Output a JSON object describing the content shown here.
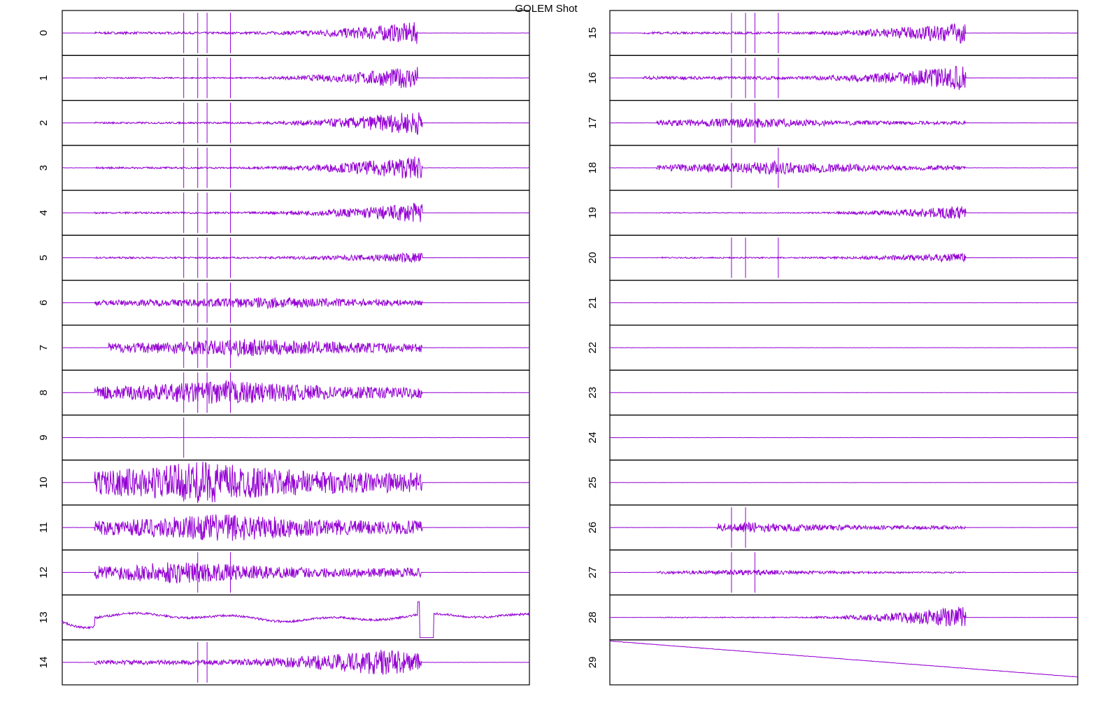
{
  "title": "GOLEM Shot",
  "panels": [
    "0",
    "1",
    "2",
    "3",
    "4",
    "5",
    "6",
    "7",
    "8",
    "9",
    "10",
    "11",
    "12",
    "13",
    "14",
    "15",
    "16",
    "17",
    "18",
    "19",
    "20",
    "21",
    "22",
    "23",
    "24",
    "25",
    "26",
    "27",
    "28",
    "29"
  ]
}
